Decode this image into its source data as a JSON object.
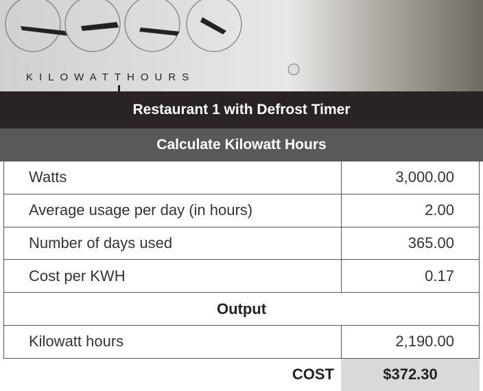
{
  "banner": {
    "label": "KILOWATTHOURS"
  },
  "header": {
    "title": "Restaurant 1 with Defrost Timer",
    "subtitle": "Calculate Kilowatt Hours"
  },
  "table": {
    "rows": [
      [
        "Watts",
        "3,000.00"
      ],
      [
        "Average usage per day (in hours)",
        "2.00"
      ],
      [
        "Number of days used",
        "365.00"
      ],
      [
        "Cost per KWH",
        "0.17"
      ]
    ]
  },
  "output": {
    "title": "Output",
    "rows": [
      [
        "Kilowatt hours",
        "2,190.00"
      ]
    ]
  },
  "total": {
    "label": "COST",
    "value": "$372.30"
  }
}
